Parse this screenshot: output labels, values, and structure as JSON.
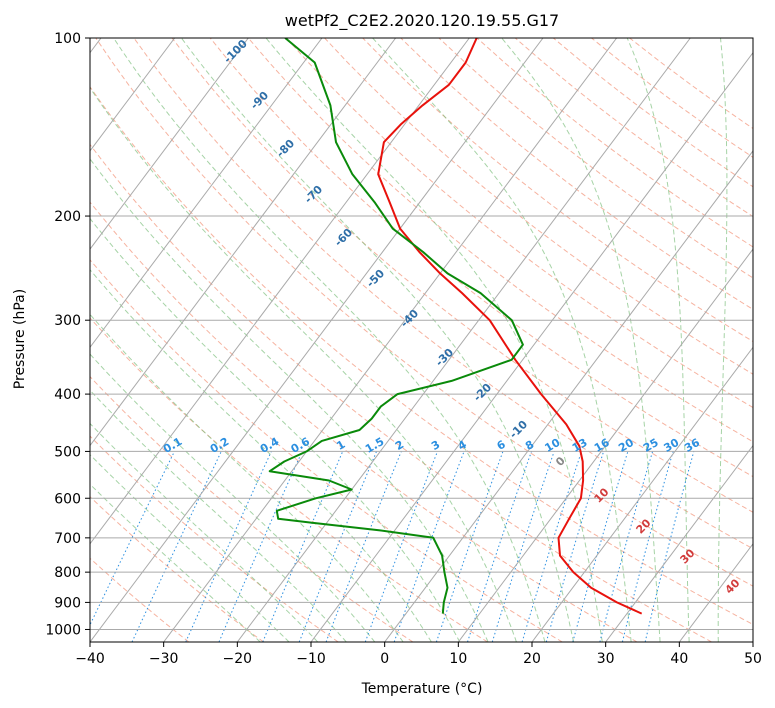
{
  "chart_data": {
    "type": "line",
    "title": "wetPf2_C2E2.2020.120.19.55.G17",
    "xlabel": "Temperature (°C)",
    "ylabel": "Pressure (hPa)",
    "xlim": [
      -40,
      50
    ],
    "ylim": [
      1050,
      100
    ],
    "y_scale": "log",
    "skew": true,
    "x_ticks": [
      -40,
      -30,
      -20,
      -10,
      0,
      10,
      20,
      30,
      40,
      50
    ],
    "x_tick_labels": [
      "−40",
      "−30",
      "−20",
      "−10",
      "0",
      "10",
      "20",
      "30",
      "40",
      "50"
    ],
    "y_ticks": [
      100,
      200,
      300,
      400,
      500,
      600,
      700,
      800,
      900,
      1000
    ],
    "y_tick_labels": [
      "100",
      "200",
      "300",
      "400",
      "500",
      "600",
      "700",
      "800",
      "900",
      "1000"
    ],
    "grid": true,
    "colors": {
      "temperature": "#e8120c",
      "dewpoint": "#0a8a0a",
      "dry_adiabat": "#f08060",
      "moist_adiabat": "#80c080",
      "mixing_ratio": "#2b8fe0",
      "grid": "#aaaaaa"
    },
    "series": [
      {
        "key": "temperature",
        "pressure": [
          940,
          900,
          850,
          800,
          750,
          700,
          650,
          600,
          560,
          520,
          490,
          450,
          400,
          350,
          300,
          270,
          250,
          230,
          210,
          190,
          170,
          150,
          140,
          130,
          120,
          110,
          100
        ],
        "values": [
          32,
          27.5,
          22.5,
          18.5,
          15,
          13,
          12.5,
          12,
          10.5,
          8.5,
          6.5,
          2.5,
          -4,
          -11,
          -18.5,
          -25,
          -30,
          -35,
          -40,
          -44,
          -48.5,
          -51,
          -50.5,
          -49.5,
          -48,
          -48,
          -49
        ]
      },
      {
        "key": "dewpoint",
        "pressure": [
          940,
          900,
          850,
          800,
          750,
          700,
          680,
          660,
          650,
          630,
          600,
          580,
          560,
          540,
          520,
          500,
          480,
          460,
          440,
          420,
          400,
          380,
          350,
          330,
          300,
          270,
          250,
          230,
          210,
          190,
          170,
          150,
          130,
          110,
          100
        ],
        "values": [
          5,
          4,
          3,
          1,
          -1,
          -4,
          -12,
          -22,
          -27,
          -28,
          -24,
          -20,
          -24,
          -33,
          -32,
          -30,
          -29,
          -25,
          -24.5,
          -24.5,
          -23.5,
          -17.5,
          -11.5,
          -11.5,
          -15.5,
          -22.5,
          -29,
          -34.5,
          -41,
          -46,
          -52,
          -57.5,
          -62,
          -68.5,
          -75
        ]
      }
    ],
    "dry_adiabat_labels": [
      "-100",
      "-90",
      "-80",
      "-70",
      "-60",
      "-50",
      "-40",
      "-30",
      "-20",
      "-10",
      "0",
      "10",
      "20",
      "30",
      "40"
    ],
    "mixing_ratio_labels": [
      "0.1",
      "0.2",
      "0.4",
      "0.6",
      "1",
      "1.5",
      "2",
      "3",
      "4",
      "6",
      "8",
      "10",
      "13",
      "16",
      "20",
      "25",
      "30",
      "36"
    ]
  }
}
